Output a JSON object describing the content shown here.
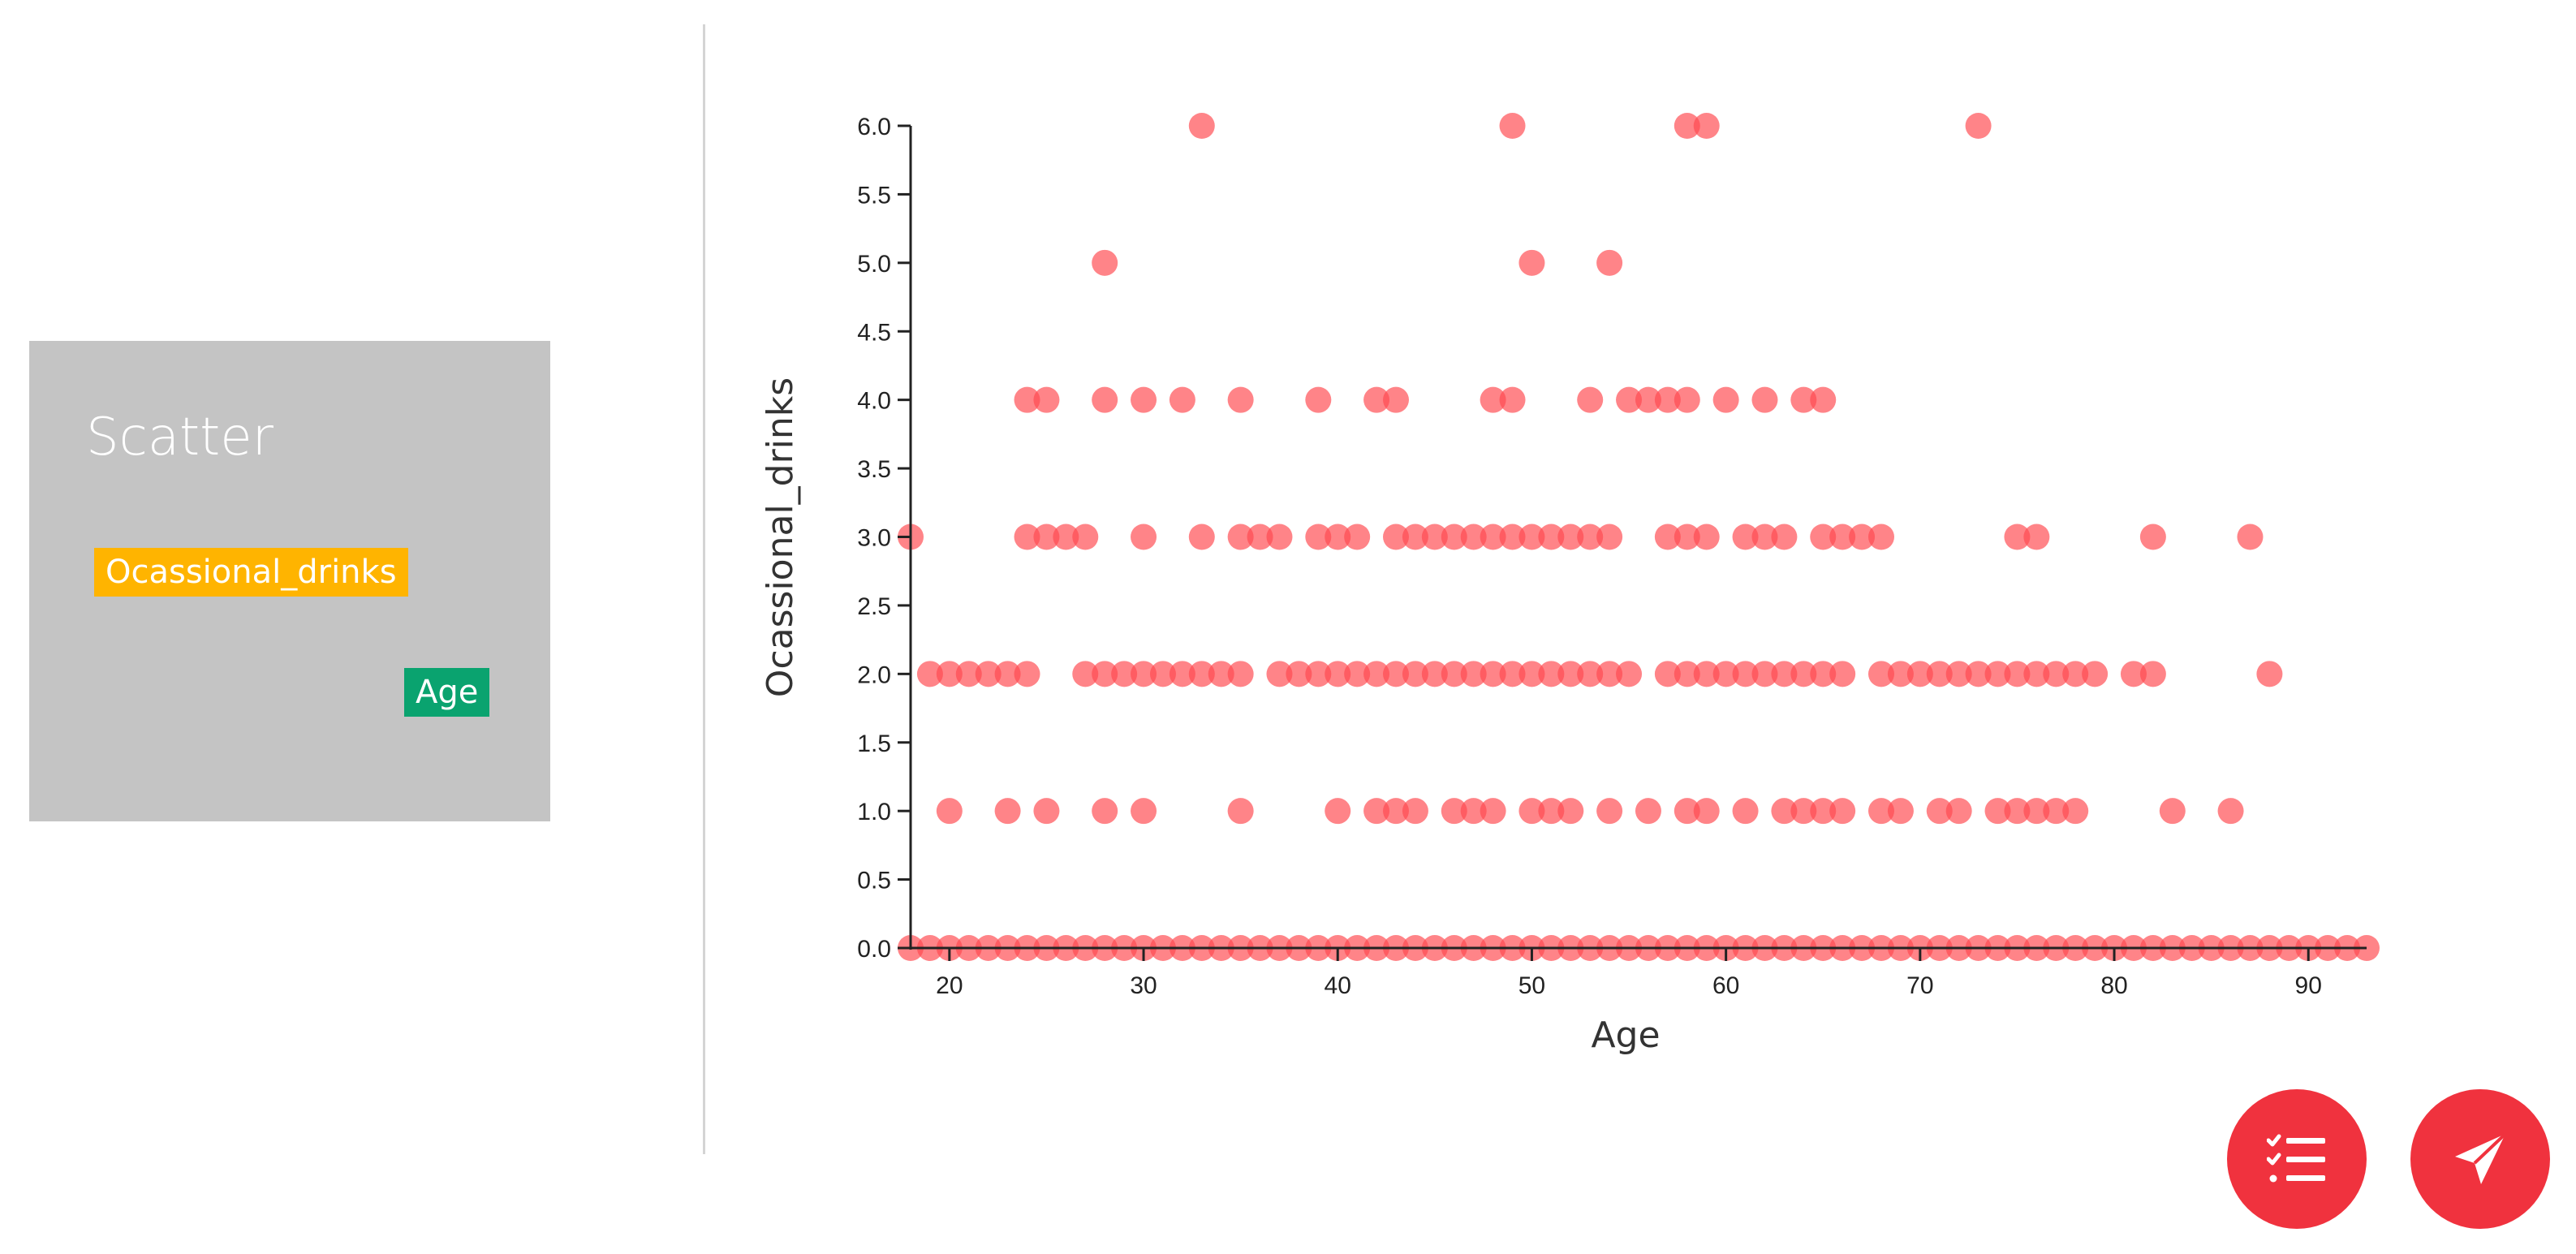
{
  "panel": {
    "title": "Scatter",
    "y_variable": "Ocassional_drinks",
    "x_variable": "Age"
  },
  "actions": {
    "list_icon": "checklist-icon",
    "send_icon": "paper-plane-icon"
  },
  "colors": {
    "point": "#ff4a4f",
    "panel_bg": "#c4c4c4",
    "y_chip": "#ffb400",
    "x_chip": "#0aa36f",
    "fab": "#f0323e"
  },
  "chart_data": {
    "type": "scatter",
    "xlabel": "Age",
    "ylabel": "Ocassional_drinks",
    "xlim": [
      18,
      93
    ],
    "ylim": [
      0,
      6
    ],
    "xticks": [
      20,
      30,
      40,
      50,
      60,
      70,
      80,
      90
    ],
    "yticks": [
      "0.0",
      "0.5",
      "1.0",
      "1.5",
      "2.0",
      "2.5",
      "3.0",
      "3.5",
      "4.0",
      "4.5",
      "5.0",
      "5.5",
      "6.0"
    ],
    "series": [
      {
        "name": "Ocassional_drinks",
        "points": [
          [
            33,
            6
          ],
          [
            49,
            6
          ],
          [
            58,
            6
          ],
          [
            59,
            6
          ],
          [
            73,
            6
          ],
          [
            28,
            5
          ],
          [
            50,
            5
          ],
          [
            54,
            5
          ],
          [
            24,
            4
          ],
          [
            25,
            4
          ],
          [
            28,
            4
          ],
          [
            30,
            4
          ],
          [
            32,
            4
          ],
          [
            35,
            4
          ],
          [
            39,
            4
          ],
          [
            42,
            4
          ],
          [
            43,
            4
          ],
          [
            48,
            4
          ],
          [
            49,
            4
          ],
          [
            53,
            4
          ],
          [
            55,
            4
          ],
          [
            56,
            4
          ],
          [
            57,
            4
          ],
          [
            58,
            4
          ],
          [
            60,
            4
          ],
          [
            62,
            4
          ],
          [
            64,
            4
          ],
          [
            65,
            4
          ],
          [
            18,
            3
          ],
          [
            24,
            3
          ],
          [
            25,
            3
          ],
          [
            26,
            3
          ],
          [
            27,
            3
          ],
          [
            30,
            3
          ],
          [
            33,
            3
          ],
          [
            35,
            3
          ],
          [
            36,
            3
          ],
          [
            37,
            3
          ],
          [
            39,
            3
          ],
          [
            40,
            3
          ],
          [
            41,
            3
          ],
          [
            43,
            3
          ],
          [
            44,
            3
          ],
          [
            45,
            3
          ],
          [
            46,
            3
          ],
          [
            47,
            3
          ],
          [
            48,
            3
          ],
          [
            49,
            3
          ],
          [
            50,
            3
          ],
          [
            51,
            3
          ],
          [
            52,
            3
          ],
          [
            53,
            3
          ],
          [
            54,
            3
          ],
          [
            57,
            3
          ],
          [
            58,
            3
          ],
          [
            59,
            3
          ],
          [
            61,
            3
          ],
          [
            62,
            3
          ],
          [
            63,
            3
          ],
          [
            65,
            3
          ],
          [
            66,
            3
          ],
          [
            67,
            3
          ],
          [
            68,
            3
          ],
          [
            75,
            3
          ],
          [
            76,
            3
          ],
          [
            82,
            3
          ],
          [
            87,
            3
          ],
          [
            19,
            2
          ],
          [
            20,
            2
          ],
          [
            21,
            2
          ],
          [
            22,
            2
          ],
          [
            23,
            2
          ],
          [
            24,
            2
          ],
          [
            27,
            2
          ],
          [
            28,
            2
          ],
          [
            29,
            2
          ],
          [
            30,
            2
          ],
          [
            31,
            2
          ],
          [
            32,
            2
          ],
          [
            33,
            2
          ],
          [
            34,
            2
          ],
          [
            35,
            2
          ],
          [
            37,
            2
          ],
          [
            38,
            2
          ],
          [
            39,
            2
          ],
          [
            40,
            2
          ],
          [
            41,
            2
          ],
          [
            42,
            2
          ],
          [
            43,
            2
          ],
          [
            44,
            2
          ],
          [
            45,
            2
          ],
          [
            46,
            2
          ],
          [
            47,
            2
          ],
          [
            48,
            2
          ],
          [
            49,
            2
          ],
          [
            50,
            2
          ],
          [
            51,
            2
          ],
          [
            52,
            2
          ],
          [
            53,
            2
          ],
          [
            54,
            2
          ],
          [
            55,
            2
          ],
          [
            57,
            2
          ],
          [
            58,
            2
          ],
          [
            59,
            2
          ],
          [
            60,
            2
          ],
          [
            61,
            2
          ],
          [
            62,
            2
          ],
          [
            63,
            2
          ],
          [
            64,
            2
          ],
          [
            65,
            2
          ],
          [
            66,
            2
          ],
          [
            68,
            2
          ],
          [
            69,
            2
          ],
          [
            70,
            2
          ],
          [
            71,
            2
          ],
          [
            72,
            2
          ],
          [
            73,
            2
          ],
          [
            74,
            2
          ],
          [
            75,
            2
          ],
          [
            76,
            2
          ],
          [
            77,
            2
          ],
          [
            78,
            2
          ],
          [
            79,
            2
          ],
          [
            81,
            2
          ],
          [
            82,
            2
          ],
          [
            88,
            2
          ],
          [
            20,
            1
          ],
          [
            23,
            1
          ],
          [
            25,
            1
          ],
          [
            28,
            1
          ],
          [
            30,
            1
          ],
          [
            35,
            1
          ],
          [
            40,
            1
          ],
          [
            42,
            1
          ],
          [
            43,
            1
          ],
          [
            44,
            1
          ],
          [
            46,
            1
          ],
          [
            47,
            1
          ],
          [
            48,
            1
          ],
          [
            50,
            1
          ],
          [
            51,
            1
          ],
          [
            52,
            1
          ],
          [
            54,
            1
          ],
          [
            56,
            1
          ],
          [
            58,
            1
          ],
          [
            59,
            1
          ],
          [
            61,
            1
          ],
          [
            63,
            1
          ],
          [
            64,
            1
          ],
          [
            65,
            1
          ],
          [
            66,
            1
          ],
          [
            68,
            1
          ],
          [
            69,
            1
          ],
          [
            71,
            1
          ],
          [
            72,
            1
          ],
          [
            74,
            1
          ],
          [
            75,
            1
          ],
          [
            76,
            1
          ],
          [
            77,
            1
          ],
          [
            78,
            1
          ],
          [
            83,
            1
          ],
          [
            86,
            1
          ],
          [
            18,
            0
          ],
          [
            19,
            0
          ],
          [
            20,
            0
          ],
          [
            21,
            0
          ],
          [
            22,
            0
          ],
          [
            23,
            0
          ],
          [
            24,
            0
          ],
          [
            25,
            0
          ],
          [
            26,
            0
          ],
          [
            27,
            0
          ],
          [
            28,
            0
          ],
          [
            29,
            0
          ],
          [
            30,
            0
          ],
          [
            31,
            0
          ],
          [
            32,
            0
          ],
          [
            33,
            0
          ],
          [
            34,
            0
          ],
          [
            35,
            0
          ],
          [
            36,
            0
          ],
          [
            37,
            0
          ],
          [
            38,
            0
          ],
          [
            39,
            0
          ],
          [
            40,
            0
          ],
          [
            41,
            0
          ],
          [
            42,
            0
          ],
          [
            43,
            0
          ],
          [
            44,
            0
          ],
          [
            45,
            0
          ],
          [
            46,
            0
          ],
          [
            47,
            0
          ],
          [
            48,
            0
          ],
          [
            49,
            0
          ],
          [
            50,
            0
          ],
          [
            51,
            0
          ],
          [
            52,
            0
          ],
          [
            53,
            0
          ],
          [
            54,
            0
          ],
          [
            55,
            0
          ],
          [
            56,
            0
          ],
          [
            57,
            0
          ],
          [
            58,
            0
          ],
          [
            59,
            0
          ],
          [
            60,
            0
          ],
          [
            61,
            0
          ],
          [
            62,
            0
          ],
          [
            63,
            0
          ],
          [
            64,
            0
          ],
          [
            65,
            0
          ],
          [
            66,
            0
          ],
          [
            67,
            0
          ],
          [
            68,
            0
          ],
          [
            69,
            0
          ],
          [
            70,
            0
          ],
          [
            71,
            0
          ],
          [
            72,
            0
          ],
          [
            73,
            0
          ],
          [
            74,
            0
          ],
          [
            75,
            0
          ],
          [
            76,
            0
          ],
          [
            77,
            0
          ],
          [
            78,
            0
          ],
          [
            79,
            0
          ],
          [
            80,
            0
          ],
          [
            81,
            0
          ],
          [
            82,
            0
          ],
          [
            83,
            0
          ],
          [
            84,
            0
          ],
          [
            85,
            0
          ],
          [
            86,
            0
          ],
          [
            87,
            0
          ],
          [
            88,
            0
          ],
          [
            89,
            0
          ],
          [
            90,
            0
          ],
          [
            91,
            0
          ],
          [
            92,
            0
          ],
          [
            93,
            0
          ]
        ]
      }
    ]
  }
}
